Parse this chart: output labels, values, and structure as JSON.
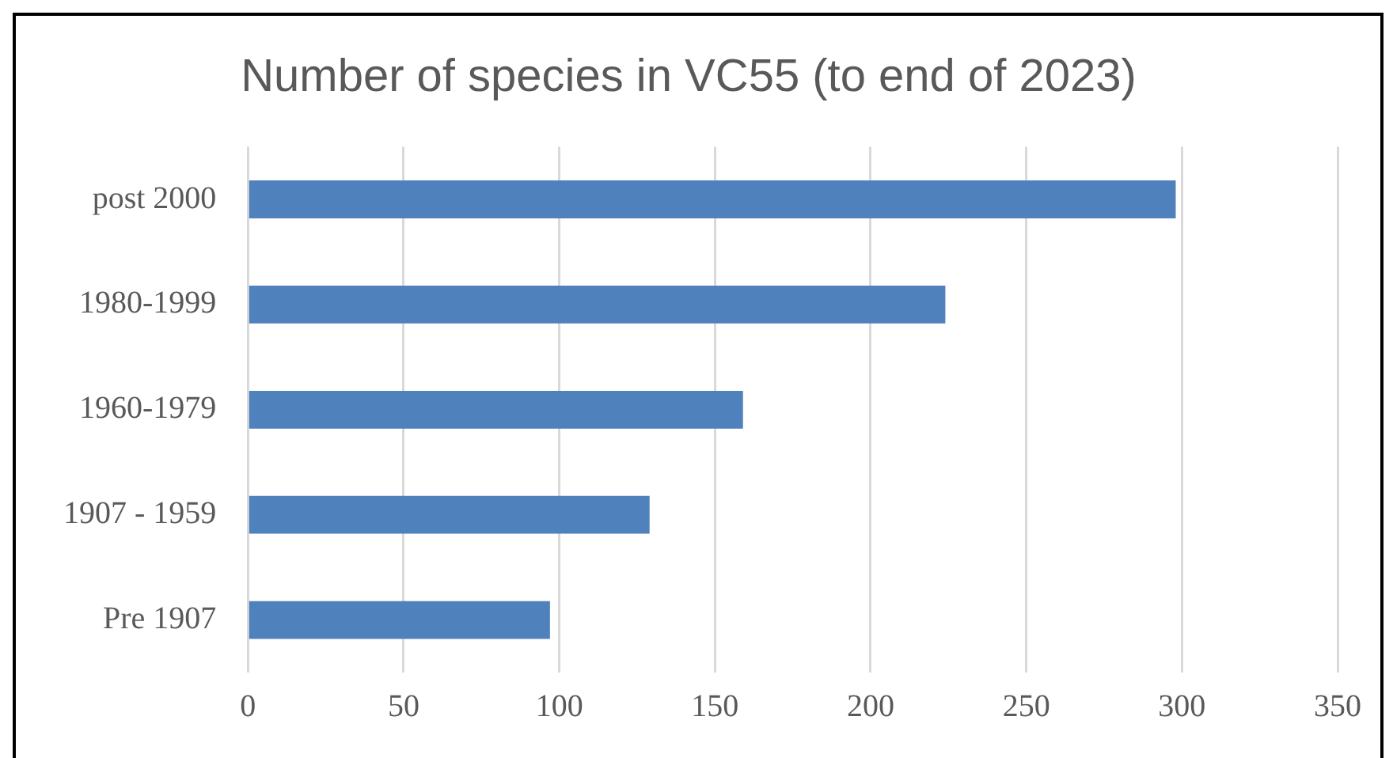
{
  "chart_data": {
    "type": "bar",
    "orientation": "horizontal",
    "title": "Number of species in VC55 (to end of 2023)",
    "categories": [
      "post 2000",
      "1980-1999",
      "1960-1979",
      "1907 - 1959",
      "Pre 1907"
    ],
    "values": [
      298,
      224,
      159,
      129,
      97
    ],
    "color": "#4f81bd",
    "xlim": [
      0,
      350
    ],
    "xticks": [
      0,
      50,
      100,
      150,
      200,
      250,
      300,
      350
    ],
    "grid": "x",
    "legend": false
  }
}
